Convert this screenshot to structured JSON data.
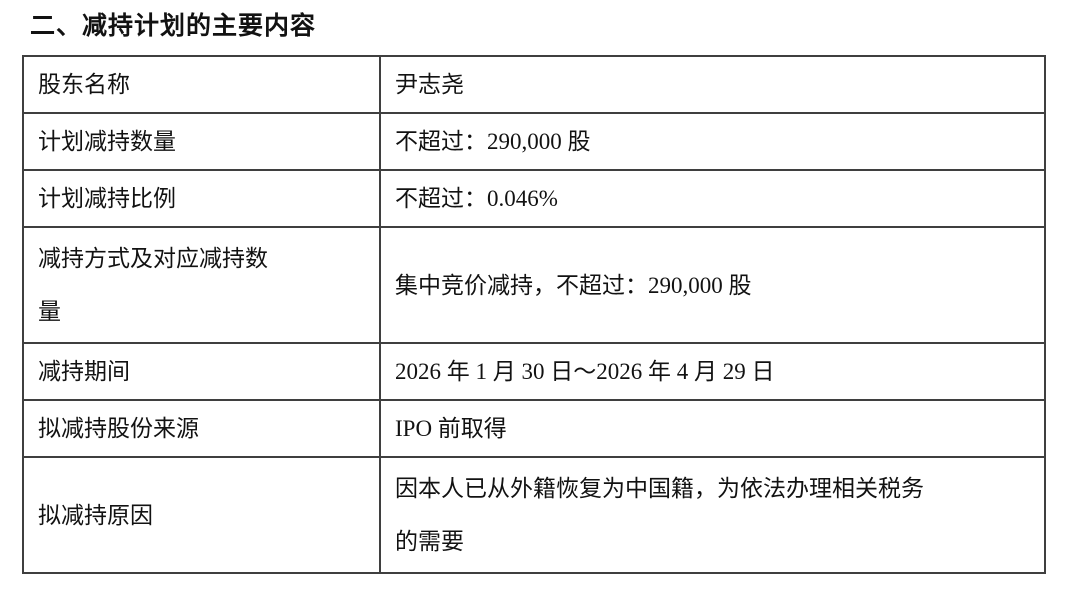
{
  "page": {
    "title": "二、减持计划的主要内容"
  },
  "table": {
    "rows": [
      {
        "label": "股东名称",
        "value": "尹志尧"
      },
      {
        "label": "计划减持数量",
        "value": "不超过：290,000 股"
      },
      {
        "label": "计划减持比例",
        "value": "不超过：0.046%"
      },
      {
        "label": "减持方式及对应减持数\n量",
        "value": "集中竞价减持，不超过：290,000 股"
      },
      {
        "label": "减持期间",
        "value": "2026 年 1 月 30 日～2026 年 4 月 29 日"
      },
      {
        "label": "拟减持股份来源",
        "value": "IPO 前取得"
      },
      {
        "label": "拟减持原因",
        "value": "因本人已从外籍恢复为中国籍，为依法办理相关税务\n的需要"
      }
    ]
  }
}
